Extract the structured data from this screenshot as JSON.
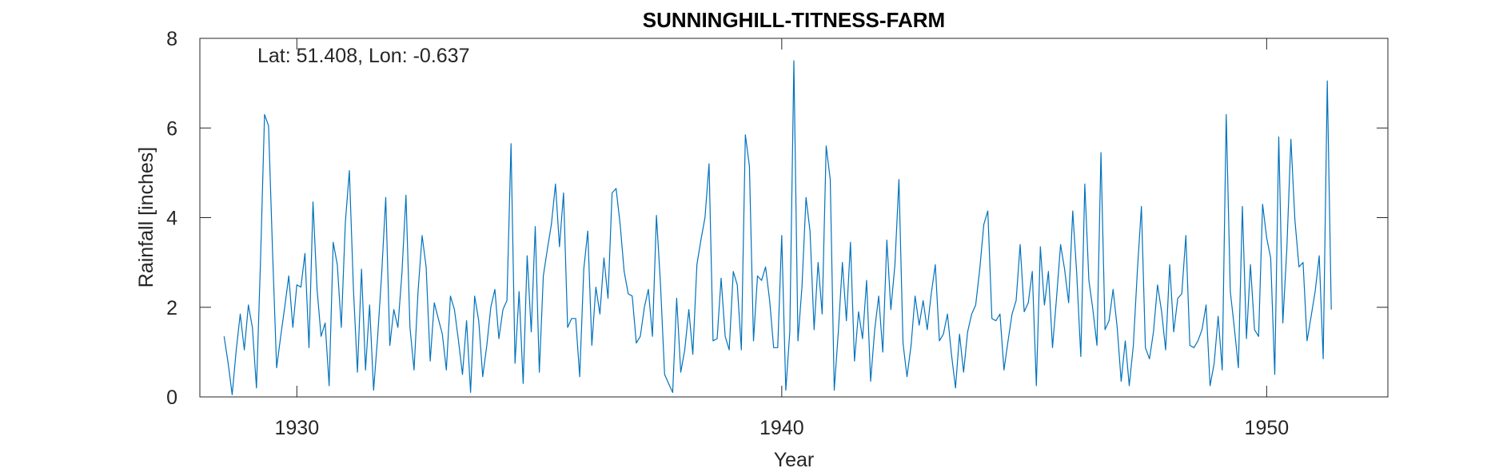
{
  "chart_data": {
    "type": "line",
    "title": "SUNNINGHILL-TITNESS-FARM",
    "annotation": "Lat: 51.408, Lon: -0.637",
    "xlabel": "Year",
    "ylabel": "Rainfall [inches]",
    "xlim": [
      1928,
      1952.5
    ],
    "ylim": [
      0,
      8
    ],
    "xticks": [
      1930,
      1940,
      1950
    ],
    "xtick_labels": [
      "1930",
      "1940",
      "1950"
    ],
    "yticks": [
      0,
      2,
      4,
      6,
      8
    ],
    "ytick_labels": [
      "0",
      "2",
      "4",
      "6",
      "8"
    ],
    "grid": false,
    "box": true,
    "series": [
      {
        "color": "#0072BD",
        "x_start": 1928.5,
        "x_step": 0.0833333,
        "values": [
          1.35,
          0.75,
          0.05,
          1.05,
          1.85,
          1.05,
          2.05,
          1.55,
          0.2,
          3.0,
          6.3,
          6.05,
          3.2,
          0.65,
          1.35,
          2.0,
          2.7,
          1.55,
          2.5,
          2.45,
          3.2,
          1.1,
          4.35,
          2.4,
          1.35,
          1.65,
          0.25,
          3.45,
          2.95,
          1.55,
          3.9,
          5.05,
          2.4,
          0.55,
          2.85,
          0.6,
          2.05,
          0.15,
          1.35,
          2.75,
          4.45,
          1.15,
          1.95,
          1.55,
          2.75,
          4.5,
          1.55,
          0.6,
          2.35,
          3.6,
          2.9,
          0.8,
          2.1,
          1.75,
          1.4,
          0.6,
          2.25,
          1.95,
          1.25,
          0.5,
          1.7,
          0.1,
          2.25,
          1.7,
          0.45,
          1.15,
          2.0,
          2.4,
          1.3,
          1.95,
          2.15,
          5.65,
          0.75,
          2.35,
          0.3,
          3.15,
          1.45,
          3.8,
          0.55,
          2.7,
          3.3,
          3.85,
          4.75,
          3.35,
          4.55,
          1.55,
          1.75,
          1.75,
          0.45,
          2.85,
          3.7,
          1.15,
          2.45,
          1.85,
          3.1,
          2.2,
          4.55,
          4.65,
          3.85,
          2.8,
          2.3,
          2.25,
          1.2,
          1.35,
          2.0,
          2.4,
          1.35,
          4.05,
          2.5,
          0.5,
          0.3,
          0.1,
          2.2,
          0.55,
          1.05,
          1.95,
          0.95,
          2.95,
          3.5,
          4.0,
          5.2,
          1.25,
          1.3,
          2.65,
          1.35,
          1.05,
          2.8,
          2.5,
          1.05,
          5.85,
          5.15,
          1.25,
          2.7,
          2.6,
          2.9,
          2.15,
          1.1,
          1.1,
          3.6,
          0.15,
          1.45,
          7.5,
          1.25,
          2.45,
          4.45,
          3.7,
          1.5,
          3.0,
          1.85,
          5.6,
          4.85,
          0.15,
          1.45,
          3.0,
          1.7,
          3.45,
          0.8,
          1.9,
          1.3,
          2.6,
          0.35,
          1.5,
          2.25,
          1.0,
          3.5,
          1.95,
          2.95,
          4.85,
          1.2,
          0.45,
          1.15,
          2.25,
          1.6,
          2.15,
          1.5,
          2.3,
          2.95,
          1.25,
          1.4,
          1.85,
          0.95,
          0.2,
          1.4,
          0.55,
          1.45,
          1.85,
          2.05,
          2.85,
          3.85,
          4.15,
          1.75,
          1.7,
          1.85,
          0.6,
          1.25,
          1.85,
          2.15,
          3.4,
          1.9,
          2.1,
          2.8,
          0.25,
          3.35,
          2.05,
          2.8,
          1.1,
          2.2,
          3.4,
          2.85,
          2.1,
          4.15,
          2.75,
          0.9,
          4.75,
          2.6,
          1.95,
          1.15,
          5.45,
          1.5,
          1.7,
          2.4,
          1.55,
          0.35,
          1.25,
          0.25,
          1.15,
          2.8,
          4.25,
          1.1,
          0.85,
          1.45,
          2.5,
          1.9,
          1.05,
          2.95,
          1.45,
          2.2,
          2.3,
          3.6,
          1.15,
          1.1,
          1.25,
          1.5,
          2.05,
          0.25,
          0.75,
          1.8,
          0.6,
          6.3,
          2.35,
          1.55,
          0.65,
          4.25,
          1.3,
          2.95,
          1.5,
          1.35,
          4.3,
          3.55,
          3.1,
          0.5,
          5.8,
          1.65,
          3.3,
          5.75,
          3.95,
          2.9,
          3.0,
          1.25,
          1.8,
          2.35,
          3.15,
          0.85,
          7.05,
          1.95
        ]
      }
    ]
  }
}
